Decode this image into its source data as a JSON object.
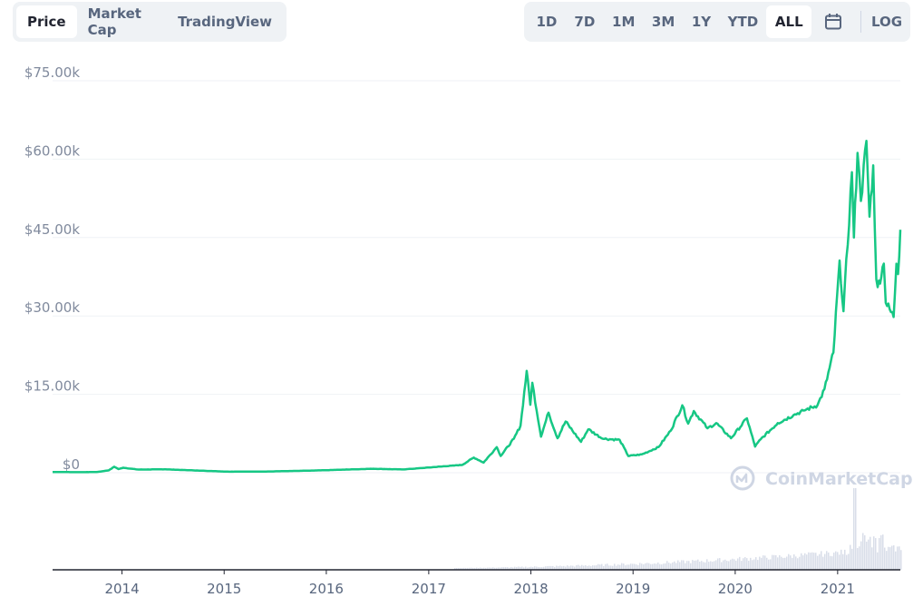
{
  "tabs": {
    "left": [
      {
        "label": "Price",
        "active": true
      },
      {
        "label": "Market Cap",
        "active": false
      },
      {
        "label": "TradingView",
        "active": false
      }
    ],
    "ranges": [
      {
        "label": "1D",
        "active": false
      },
      {
        "label": "7D",
        "active": false
      },
      {
        "label": "1M",
        "active": false
      },
      {
        "label": "3M",
        "active": false
      },
      {
        "label": "1Y",
        "active": false
      },
      {
        "label": "YTD",
        "active": false
      },
      {
        "label": "ALL",
        "active": true
      }
    ],
    "calendar_icon": "calendar-icon",
    "log_label": "LOG"
  },
  "watermark": {
    "text": "CoinMarketCap",
    "icon": "coinmarketcap-logo-icon"
  },
  "colors": {
    "line": "#16c784",
    "grid": "#eff2f5",
    "volume": "#cfd6e4",
    "tab_bg": "#eff2f5"
  },
  "chart_data": {
    "type": "line",
    "title": "",
    "xlabel": "",
    "ylabel": "",
    "ylim": [
      0,
      75000
    ],
    "y_ticks": [
      {
        "value": 75000,
        "label": "$75.00k"
      },
      {
        "value": 60000,
        "label": "$60.00k"
      },
      {
        "value": 45000,
        "label": "$45.00k"
      },
      {
        "value": 30000,
        "label": "$30.00k"
      },
      {
        "value": 15000,
        "label": "$15.00k"
      },
      {
        "value": 0,
        "label": "$0"
      }
    ],
    "x_ticks": [
      "2014",
      "2015",
      "2016",
      "2017",
      "2018",
      "2019",
      "2020",
      "2021"
    ],
    "grid": true,
    "series": [
      {
        "points": [
          [
            "2013-04-28",
            135
          ],
          [
            "2013-08-01",
            100
          ],
          [
            "2013-10-01",
            125
          ],
          [
            "2013-11-15",
            450
          ],
          [
            "2013-12-04",
            1150
          ],
          [
            "2013-12-20",
            700
          ],
          [
            "2014-01-06",
            950
          ],
          [
            "2014-03-01",
            600
          ],
          [
            "2014-06-01",
            650
          ],
          [
            "2014-09-01",
            470
          ],
          [
            "2015-01-14",
            200
          ],
          [
            "2015-06-01",
            230
          ],
          [
            "2015-11-04",
            400
          ],
          [
            "2016-06-17",
            760
          ],
          [
            "2016-10-01",
            620
          ],
          [
            "2017-01-01",
            1000
          ],
          [
            "2017-05-01",
            1500
          ],
          [
            "2017-06-11",
            2900
          ],
          [
            "2017-07-16",
            1950
          ],
          [
            "2017-09-01",
            4900
          ],
          [
            "2017-09-15",
            3200
          ],
          [
            "2017-11-01",
            6500
          ],
          [
            "2017-11-25",
            9000
          ],
          [
            "2017-12-17",
            19500
          ],
          [
            "2017-12-30",
            13000
          ],
          [
            "2018-01-06",
            17200
          ],
          [
            "2018-02-06",
            6900
          ],
          [
            "2018-03-05",
            11500
          ],
          [
            "2018-04-06",
            6600
          ],
          [
            "2018-05-05",
            9800
          ],
          [
            "2018-06-29",
            5900
          ],
          [
            "2018-07-25",
            8300
          ],
          [
            "2018-09-15",
            6500
          ],
          [
            "2018-11-14",
            6300
          ],
          [
            "2018-12-15",
            3200
          ],
          [
            "2019-02-01",
            3500
          ],
          [
            "2019-04-02",
            4900
          ],
          [
            "2019-05-15",
            8000
          ],
          [
            "2019-06-26",
            12900
          ],
          [
            "2019-07-17",
            9400
          ],
          [
            "2019-08-06",
            11800
          ],
          [
            "2019-09-24",
            8500
          ],
          [
            "2019-10-25",
            9500
          ],
          [
            "2019-12-17",
            6600
          ],
          [
            "2020-02-12",
            10400
          ],
          [
            "2020-03-12",
            5000
          ],
          [
            "2020-04-01",
            6400
          ],
          [
            "2020-06-01",
            9500
          ],
          [
            "2020-07-27",
            11000
          ],
          [
            "2020-09-01",
            11900
          ],
          [
            "2020-10-21",
            12900
          ],
          [
            "2020-11-15",
            16000
          ],
          [
            "2020-12-17",
            23000
          ],
          [
            "2021-01-08",
            40600
          ],
          [
            "2021-01-22",
            30900
          ],
          [
            "2021-02-21",
            57500
          ],
          [
            "2021-02-28",
            45000
          ],
          [
            "2021-03-13",
            61200
          ],
          [
            "2021-03-25",
            52000
          ],
          [
            "2021-04-14",
            63500
          ],
          [
            "2021-04-25",
            49000
          ],
          [
            "2021-05-08",
            58800
          ],
          [
            "2021-05-19",
            37000
          ],
          [
            "2021-05-24",
            35500
          ],
          [
            "2021-06-15",
            40000
          ],
          [
            "2021-06-22",
            32500
          ],
          [
            "2021-07-20",
            29800
          ],
          [
            "2021-07-30",
            40000
          ],
          [
            "2021-08-05",
            38000
          ],
          [
            "2021-08-13",
            46500
          ]
        ]
      }
    ]
  }
}
